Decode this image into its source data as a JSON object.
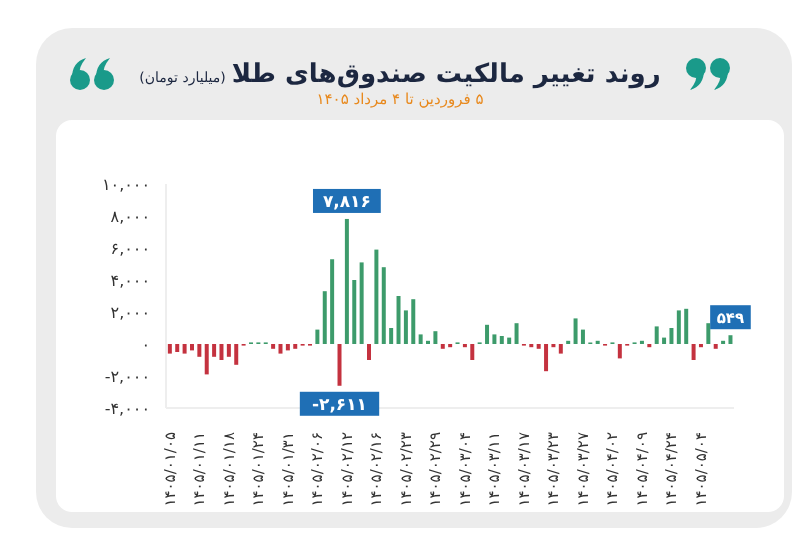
{
  "chart_data": {
    "type": "bar",
    "title": "روند تغییر مالکیت صندوق‌های طلا",
    "annotations": [
      "(میلیارد تومان)"
    ],
    "subtitle": "۵ فروردین تا ۴ مرداد ۱۴۰۵",
    "categories": [
      "۱۴۰۵/۰۱/۰۵",
      null,
      null,
      null,
      "۱۴۰۵/۰۱/۱۱",
      null,
      null,
      null,
      "۱۴۰۵/۰۱/۱۸",
      null,
      null,
      null,
      "۱۴۰۵/۰۱/۲۴",
      null,
      null,
      null,
      "۱۴۰۵/۰۱/۳۱",
      null,
      null,
      null,
      "۱۴۰۵/۰۲/۰۶",
      null,
      null,
      null,
      "۱۴۰۵/۰۲/۱۲",
      null,
      null,
      null,
      "۱۴۰۵/۰۲/۱۶",
      null,
      null,
      null,
      "۱۴۰۵/۰۲/۲۳",
      null,
      null,
      null,
      "۱۴۰۵/۰۲/۲۹",
      null,
      null,
      null,
      "۱۴۰۵/۰۳/۰۴",
      null,
      null,
      null,
      "۱۴۰۵/۰۳/۱۱",
      null,
      null,
      null,
      "۱۴۰۵/۰۳/۱۷",
      null,
      null,
      null,
      "۱۴۰۵/۰۳/۲۳",
      null,
      null,
      null,
      "۱۴۰۵/۰۳/۲۷",
      null,
      null,
      null,
      "۱۴۰۵/۰۴/۰۲",
      null,
      null,
      null,
      "۱۴۰۵/۰۴/۰۹",
      null,
      null,
      null,
      "۱۴۰۵/۰۴/۲۴",
      null,
      null,
      null,
      "۱۴۰۵/۰۵/۰۴",
      null,
      null,
      null,
      null
    ],
    "values": [
      -600,
      -500,
      -600,
      -400,
      -800,
      -1900,
      -800,
      -1000,
      -800,
      -1300,
      -100,
      100,
      100,
      100,
      -300,
      -600,
      -400,
      -300,
      -100,
      -100,
      900,
      3300,
      5300,
      -2611,
      7816,
      4000,
      5100,
      -1000,
      5900,
      4800,
      1000,
      3000,
      2100,
      2800,
      600,
      200,
      800,
      -300,
      -200,
      100,
      -200,
      -1000,
      100,
      1200,
      600,
      500,
      400,
      1300,
      -100,
      -200,
      -300,
      -1700,
      -200,
      -600,
      200,
      1600,
      900,
      100,
      200,
      -100,
      100,
      -900,
      -100,
      100,
      200,
      -200,
      1100,
      400,
      1000,
      2100,
      2200,
      -1000,
      -200,
      1300,
      -300,
      200,
      549
    ],
    "colors": [
      "#c4323f",
      "#c4323f",
      "#c4323f",
      "#c4323f",
      "#c4323f",
      "#c4323f",
      "#c4323f",
      "#c4323f",
      "#c4323f",
      "#c4323f",
      "#c4323f",
      "#3d9b6b",
      "#3d9b6b",
      "#3d9b6b",
      "#c4323f",
      "#c4323f",
      "#c4323f",
      "#c4323f",
      "#c4323f",
      "#c4323f",
      "#3d9b6b",
      "#3d9b6b",
      "#3d9b6b",
      "#c4323f",
      "#3d9b6b",
      "#3d9b6b",
      "#3d9b6b",
      "#c4323f",
      "#3d9b6b",
      "#3d9b6b",
      "#3d9b6b",
      "#3d9b6b",
      "#3d9b6b",
      "#3d9b6b",
      "#3d9b6b",
      "#3d9b6b",
      "#3d9b6b",
      "#c4323f",
      "#c4323f",
      "#3d9b6b",
      "#c4323f",
      "#c4323f",
      "#3d9b6b",
      "#3d9b6b",
      "#3d9b6b",
      "#3d9b6b",
      "#3d9b6b",
      "#3d9b6b",
      "#c4323f",
      "#c4323f",
      "#c4323f",
      "#c4323f",
      "#c4323f",
      "#c4323f",
      "#3d9b6b",
      "#3d9b6b",
      "#3d9b6b",
      "#3d9b6b",
      "#3d9b6b",
      "#c4323f",
      "#3d9b6b",
      "#c4323f",
      "#c4323f",
      "#3d9b6b",
      "#3d9b6b",
      "#c4323f",
      "#3d9b6b",
      "#3d9b6b",
      "#3d9b6b",
      "#3d9b6b",
      "#3d9b6b",
      "#c4323f",
      "#c4323f",
      "#3d9b6b",
      "#c4323f",
      "#3d9b6b",
      "#3d9b6b"
    ],
    "value_labels": [
      null,
      null,
      null,
      null,
      null,
      null,
      null,
      null,
      null,
      null,
      null,
      null,
      null,
      null,
      null,
      null,
      null,
      null,
      null,
      null,
      null,
      null,
      null,
      "-۲,۶۱۱",
      "۷,۸۱۶",
      null,
      null,
      null,
      null,
      null,
      null,
      null,
      null,
      null,
      null,
      null,
      null,
      null,
      null,
      null,
      null,
      null,
      null,
      null,
      null,
      null,
      null,
      null,
      null,
      null,
      null,
      null,
      null,
      null,
      null,
      null,
      null,
      null,
      null,
      null,
      null,
      null,
      null,
      null,
      null,
      null,
      null,
      null,
      null,
      null,
      null,
      null,
      null,
      null,
      null,
      null,
      "۵۴۹"
    ],
    "ylim": [
      -4000,
      10000
    ],
    "yticks": [
      {
        "value": -4000,
        "label": "-۴,۰۰۰"
      },
      {
        "value": -2000,
        "label": "-۲,۰۰۰"
      },
      {
        "value": 0,
        "label": "۰"
      },
      {
        "value": 2000,
        "label": "۲,۰۰۰"
      },
      {
        "value": 4000,
        "label": "۴,۰۰۰"
      },
      {
        "value": 6000,
        "label": "۶,۰۰۰"
      },
      {
        "value": 8000,
        "label": "۸,۰۰۰"
      },
      {
        "value": 10000,
        "label": "۱۰,۰۰۰"
      }
    ]
  }
}
